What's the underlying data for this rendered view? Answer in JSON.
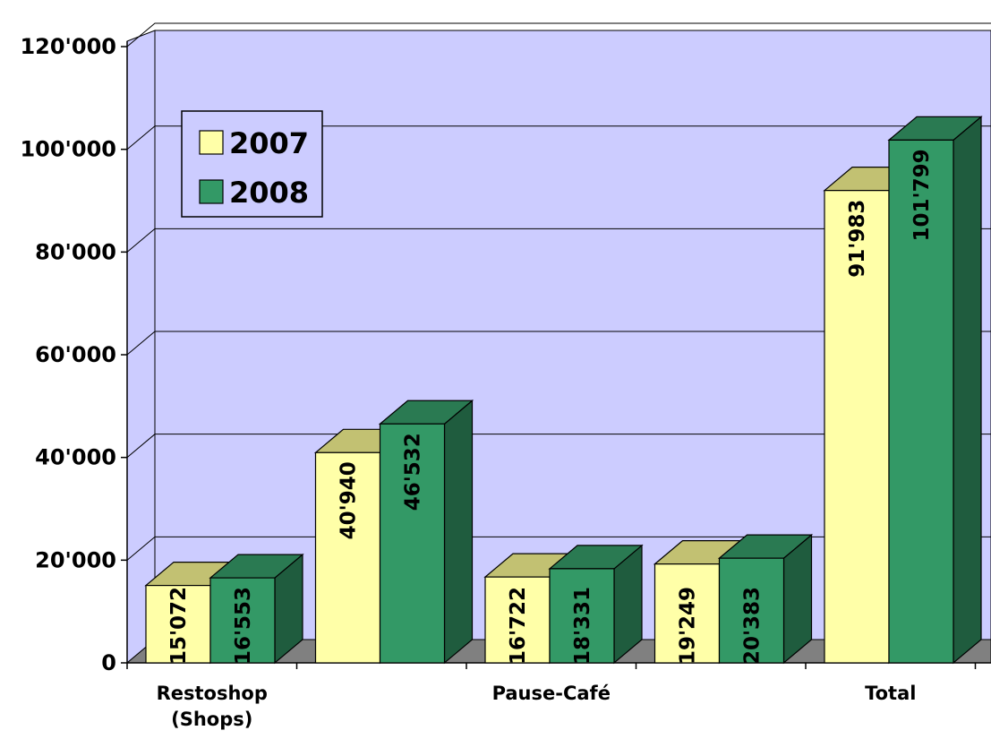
{
  "chart_data": {
    "type": "bar",
    "title": "",
    "xlabel": "",
    "ylabel": "",
    "ylim": [
      0,
      120000
    ],
    "yticks": [
      0,
      20000,
      40000,
      60000,
      80000,
      100000,
      120000
    ],
    "ytick_labels": [
      "0",
      "20'000",
      "40'000",
      "60'000",
      "80'000",
      "100'000",
      "120'000"
    ],
    "categories": [
      "",
      "",
      "",
      "",
      ""
    ],
    "category_labels": [
      {
        "lines": [
          "Restoshop",
          "(Shops)"
        ]
      },
      {
        "lines": [
          ""
        ]
      },
      {
        "lines": [
          "Pause-Café"
        ]
      },
      {
        "lines": [
          ""
        ]
      },
      {
        "lines": [
          "Total"
        ]
      }
    ],
    "grid": true,
    "legend_position": "top-left",
    "series": [
      {
        "name": "2007",
        "values": [
          15072,
          40940,
          16722,
          19249,
          91983
        ],
        "labels": [
          "15'072",
          "40'940",
          "16'722",
          "19'249",
          "91'983"
        ]
      },
      {
        "name": "2008",
        "values": [
          16553,
          46532,
          18331,
          20383,
          101799
        ],
        "labels": [
          "16'553",
          "46'532",
          "18'331",
          "20'383",
          "101'799"
        ]
      }
    ],
    "colors": {
      "s2007_front": "#ffffa8",
      "s2007_top": "#c2c172",
      "s2007_side": "#a7a75e",
      "s2008_front": "#339966",
      "s2008_top": "#2a7a52",
      "s2008_side": "#1f5c3e",
      "wall": "#ccccff",
      "floor": "#808080"
    }
  }
}
